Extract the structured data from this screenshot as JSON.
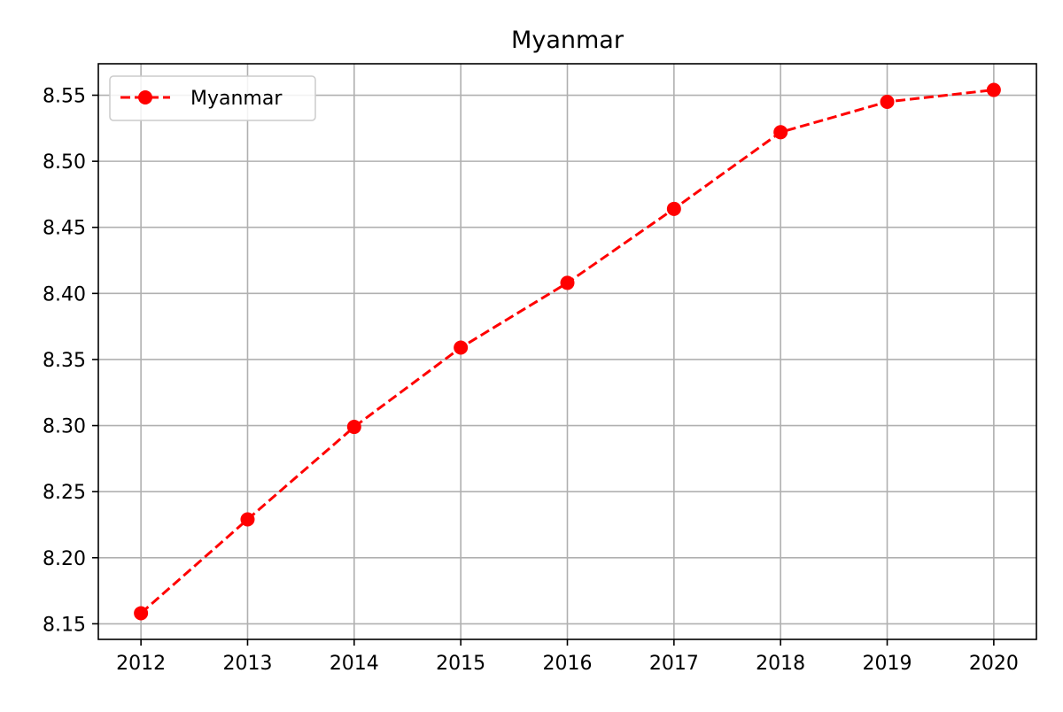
{
  "chart_data": {
    "type": "line",
    "title": "Myanmar",
    "xlabel": "",
    "ylabel": "",
    "x": [
      2012,
      2013,
      2014,
      2015,
      2016,
      2017,
      2018,
      2019,
      2020
    ],
    "series": [
      {
        "name": "Myanmar",
        "values": [
          8.158,
          8.229,
          8.299,
          8.359,
          8.408,
          8.464,
          8.522,
          8.545,
          8.554
        ],
        "color": "#ff0000",
        "line_style": "dashed",
        "marker": "circle"
      }
    ],
    "xticks": [
      "2012",
      "2013",
      "2014",
      "2015",
      "2016",
      "2017",
      "2018",
      "2019",
      "2020"
    ],
    "yticks": [
      "8.15",
      "8.20",
      "8.25",
      "8.30",
      "8.35",
      "8.40",
      "8.45",
      "8.50",
      "8.55"
    ],
    "xlim": [
      2011.6,
      2020.4
    ],
    "ylim": [
      8.1382,
      8.5738
    ],
    "grid": true,
    "legend_position": "top-left"
  }
}
